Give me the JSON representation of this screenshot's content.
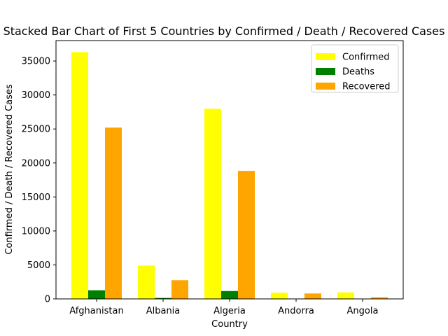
{
  "chart_data": {
    "type": "bar",
    "title": "Stacked Bar Chart of First 5 Countries by Confirmed / Death / Recovered Cases",
    "xlabel": "Country",
    "ylabel": "Confirmed / Death / Recovered Cases",
    "categories": [
      "Afghanistan",
      "Albania",
      "Algeria",
      "Andorra",
      "Angola"
    ],
    "series": [
      {
        "name": "Confirmed",
        "color": "#ffff00",
        "values": [
          36300,
          4900,
          27970,
          910,
          950
        ]
      },
      {
        "name": "Deaths",
        "color": "#008000",
        "values": [
          1270,
          140,
          1160,
          52,
          41
        ]
      },
      {
        "name": "Recovered",
        "color": "#ffa500",
        "values": [
          25200,
          2750,
          18840,
          800,
          240
        ]
      }
    ],
    "ylim": [
      0,
      38000
    ],
    "yticks": [
      0,
      5000,
      10000,
      15000,
      20000,
      25000,
      30000,
      35000
    ],
    "grid": false,
    "legend_position": "top-right"
  }
}
